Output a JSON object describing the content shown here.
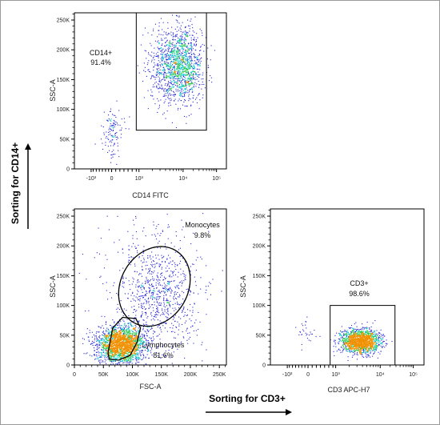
{
  "figure": {
    "sorting_cd14": "Sorting for CD14+",
    "sorting_cd3": "Sorting for CD3+"
  },
  "colors": {
    "background": "#ffffff",
    "axes": "#000000",
    "dots_sparse": "#2323d8",
    "dots_dense": "#00c8c8",
    "dots_peak": "#f09000",
    "gate": "#000000"
  },
  "chart_data": [
    {
      "id": "cd14",
      "type": "scatter",
      "xlabel": "CD14 FITC",
      "ylabel": "SSC-A",
      "x_scale": "biexponential",
      "y_scale": "linear",
      "xlim": [
        -3000,
        300000
      ],
      "ylim": [
        0,
        262144
      ],
      "xticks": [
        {
          "value": -1000,
          "label": "-10³"
        },
        {
          "value": 0,
          "label": "0"
        },
        {
          "value": 1000,
          "label": "10³"
        },
        {
          "value": 10000,
          "label": "10⁴"
        },
        {
          "value": 100000,
          "label": "10⁵"
        }
      ],
      "yticks": [
        {
          "value": 0,
          "label": "0"
        },
        {
          "value": 50000,
          "label": "50K"
        },
        {
          "value": 100000,
          "label": "100K"
        },
        {
          "value": 150000,
          "label": "150K"
        },
        {
          "value": 200000,
          "label": "200K"
        },
        {
          "value": 250000,
          "label": "250K"
        }
      ],
      "clusters": [
        {
          "x_center": 8000,
          "x_spread_decades": 0.32,
          "y_center": 175000,
          "y_spread": 32000,
          "count": 1500
        },
        {
          "x_center": 5,
          "x_spread_linear": 200,
          "y_center": 60000,
          "y_spread": 20000,
          "count": 120
        }
      ],
      "gates": [
        {
          "name": "CD14+",
          "percent": "91.4%",
          "shape": "rectangle",
          "x_range": [
            900,
            50000
          ],
          "y_range": [
            65000,
            262144
          ]
        }
      ]
    },
    {
      "id": "fsc",
      "type": "scatter",
      "xlabel": "FSC-A",
      "ylabel": "SSC-A",
      "x_scale": "linear",
      "y_scale": "linear",
      "xlim": [
        0,
        262144
      ],
      "ylim": [
        0,
        262144
      ],
      "xticks": [
        {
          "value": 0,
          "label": "0"
        },
        {
          "value": 50000,
          "label": "50K"
        },
        {
          "value": 100000,
          "label": "100K"
        },
        {
          "value": 150000,
          "label": "150K"
        },
        {
          "value": 200000,
          "label": "200K"
        },
        {
          "value": 250000,
          "label": "250K"
        }
      ],
      "yticks": [
        {
          "value": 0,
          "label": "0"
        },
        {
          "value": 50000,
          "label": "50K"
        },
        {
          "value": 100000,
          "label": "100K"
        },
        {
          "value": 150000,
          "label": "150K"
        },
        {
          "value": 200000,
          "label": "200K"
        },
        {
          "value": 250000,
          "label": "250K"
        }
      ],
      "clusters": [
        {
          "x_center": 80000,
          "x_spread": 20000,
          "y_center": 35000,
          "y_spread": 15000,
          "count": 2200
        },
        {
          "x_center": 145000,
          "x_spread": 35000,
          "y_center": 120000,
          "y_spread": 45000,
          "count": 800
        },
        {
          "x_center": 120000,
          "x_spread": 70000,
          "y_center": 130000,
          "y_spread": 80000,
          "count": 150
        }
      ],
      "gates": [
        {
          "name": "Monocytes",
          "percent": "9.8%",
          "shape": "ellipse",
          "center": [
            138000,
            132000
          ],
          "radii": [
            58000,
            70000
          ],
          "rotation_deg": 30
        },
        {
          "name": "Lymphocytes",
          "percent": "81.6%",
          "shape": "polygon",
          "points": [
            [
              58000,
              20000
            ],
            [
              66000,
              62000
            ],
            [
              83000,
              80000
            ],
            [
              106000,
              78000
            ],
            [
              114000,
              62000
            ],
            [
              108000,
              38000
            ],
            [
              96000,
              16000
            ],
            [
              76000,
              8000
            ],
            [
              60000,
              10000
            ]
          ]
        }
      ]
    },
    {
      "id": "cd3",
      "type": "scatter",
      "xlabel": "CD3 APC-H7",
      "ylabel": "SSC-A",
      "x_scale": "biexponential",
      "y_scale": "linear",
      "xlim": [
        -3000,
        300000
      ],
      "ylim": [
        0,
        262144
      ],
      "xticks": [
        {
          "value": -1000,
          "label": "-10³"
        },
        {
          "value": 0,
          "label": "0"
        },
        {
          "value": 1000,
          "label": "10³"
        },
        {
          "value": 10000,
          "label": "10⁴"
        },
        {
          "value": 100000,
          "label": "10⁵"
        }
      ],
      "yticks": [
        {
          "value": 0,
          "label": "0"
        },
        {
          "value": 50000,
          "label": "50K"
        },
        {
          "value": 100000,
          "label": "100K"
        },
        {
          "value": 150000,
          "label": "150K"
        },
        {
          "value": 200000,
          "label": "200K"
        },
        {
          "value": 250000,
          "label": "250K"
        }
      ],
      "clusters": [
        {
          "x_center": 3500,
          "x_spread_decades": 0.22,
          "y_center": 40000,
          "y_spread": 10000,
          "count": 1600
        },
        {
          "x_center": -200,
          "x_spread_linear": 250,
          "y_center": 55000,
          "y_spread": 12000,
          "count": 30
        }
      ],
      "gates": [
        {
          "name": "CD3+",
          "percent": "98.6%",
          "shape": "rectangle",
          "x_range": [
            800,
            28000
          ],
          "y_range": [
            0,
            100000
          ]
        }
      ]
    }
  ]
}
